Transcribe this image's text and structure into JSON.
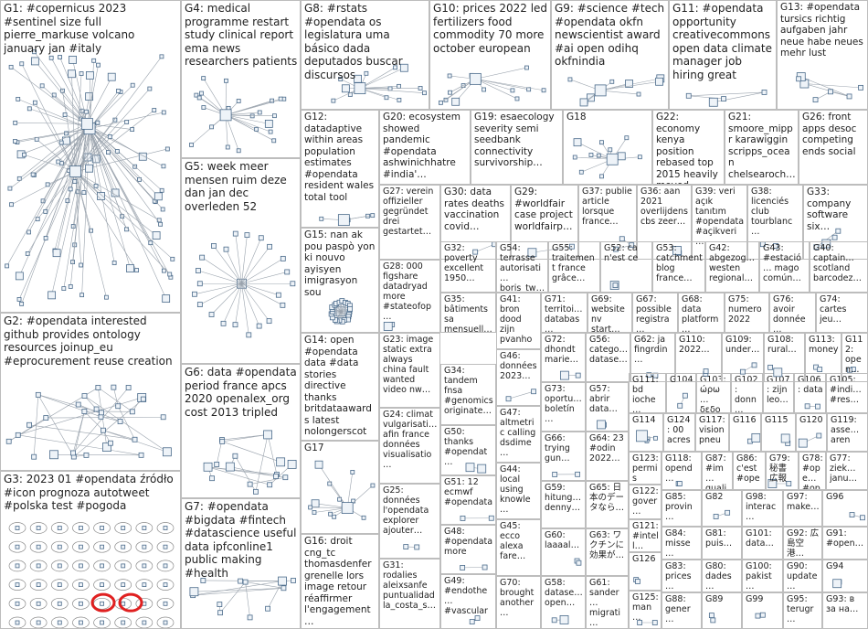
{
  "graph": {
    "groups": [
      {
        "id": "G1",
        "label": "G1: #copernicus 2023 #sentinel size full pierre_markuse volcano january jan #italy"
      },
      {
        "id": "G2",
        "label": "G2: #opendata interested github provides ontology resources joinup_eu #eprocurement reuse creation"
      },
      {
        "id": "G3",
        "label": "G3: 2023 01 #opendata źródło #icon prognoza autotweet #polska test #pogoda"
      },
      {
        "id": "G4",
        "label": "G4: medical programme restart study clinical report ema news researchers patients"
      },
      {
        "id": "G5",
        "label": "G5: week meer mensen ruim deze dan jan dec overleden 52"
      },
      {
        "id": "G6",
        "label": "G6: data #opendata period france apcs 2020 openalex_org cost 2013 tripled"
      },
      {
        "id": "G7",
        "label": "G7: #opendata #bigdata #fintech #datascience useful data ipfconline1 public making #health"
      },
      {
        "id": "G8",
        "label": "G8: #rstats #opendata os legislatura uma básico dada deputados buscar discursos"
      },
      {
        "id": "G9",
        "label": "G9: #science #tech #opendata okfn newscientist award #ai open odihq okfnindia"
      },
      {
        "id": "G10",
        "label": "G10: prices 2022 led fertilizers food commodity 70 more october european"
      },
      {
        "id": "G11",
        "label": "G11: #opendata opportunity creativecommons open data climate manager job hiring great"
      },
      {
        "id": "G12",
        "label": "G12: datadaptive within areas population estimates #opendata resident wales total tool"
      },
      {
        "id": "G13",
        "label": "G13: #opendata tursics richtig aufgaben jahr neue habe neues mehr lust"
      },
      {
        "id": "G14",
        "label": "G14: open #opendata data #data stories directive thanks britdataawards latest nolongerscot"
      },
      {
        "id": "G15",
        "label": "G15: nan ak pou paspò yon ki nouvo ayisyen imigrasyon sou"
      },
      {
        "id": "G16",
        "label": "G16: droit cng_tc thomasdenfer grenelle lors image retour réaffirmer l'engagement…"
      },
      {
        "id": "G17",
        "label": "G17"
      },
      {
        "id": "G18",
        "label": "G18"
      },
      {
        "id": "G19",
        "label": "G19: esaecology severity semi seedbank connectivity survivorship…"
      },
      {
        "id": "G20",
        "label": "G20: ecosystem showed pandemic #opendata ashwinichhatre #india'…"
      },
      {
        "id": "G21",
        "label": "G21: smoore_mippr karawiggin scripps_ocean chelsearoch…"
      },
      {
        "id": "G22",
        "label": "G22: economy kenya position rebased top 2015 heavily moved…"
      },
      {
        "id": "G23",
        "label": "G23: image static extra always china fault wanted video nw…"
      },
      {
        "id": "G24",
        "label": "G24: climat vulgarisati… afin france données visualisatio…"
      },
      {
        "id": "G25",
        "label": "G25: données l'opendata explorer ajouter…"
      },
      {
        "id": "G26",
        "label": "G26: front apps desoc competing ends social"
      },
      {
        "id": "G27",
        "label": "G27: verein offizieller gegründet drei gestartet…"
      },
      {
        "id": "G28",
        "label": "G28: 000 figshare datadryad more #stateofop…"
      },
      {
        "id": "G29",
        "label": "G29: #worldfair case project worldfairp…"
      },
      {
        "id": "G30",
        "label": "G30: data rates deaths vaccination covid…"
      },
      {
        "id": "G31",
        "label": "G31: rodalies aleixsanfe puntualidad la_costa_s…"
      },
      {
        "id": "G32",
        "label": "G32: poverty excellent 1950…"
      },
      {
        "id": "G33",
        "label": "G33: company software six…"
      },
      {
        "id": "G34",
        "label": "G34: tandem fnsa #genomics originate…"
      },
      {
        "id": "G35",
        "label": "G35: bâtiments sa mensuell…"
      },
      {
        "id": "G36",
        "label": "G36: aan 2021 overlijdens cbs zeer…"
      },
      {
        "id": "G37",
        "label": "G37: publie article lorsque france…"
      },
      {
        "id": "G38",
        "label": "G38: licenciés club tourblanc…"
      },
      {
        "id": "G39",
        "label": "G39: veri açık tanıtım #opendata #açikveri…"
      },
      {
        "id": "G40",
        "label": "G40: captain… scotland barcodez…"
      },
      {
        "id": "G41",
        "label": "G41: bron dood zijn pvanho…"
      },
      {
        "id": "G42",
        "label": "G42: abgezog… westen regional…"
      },
      {
        "id": "G43",
        "label": "G43: #estació… mago común…"
      },
      {
        "id": "G44",
        "label": "G44: local using knowle…"
      },
      {
        "id": "G45",
        "label": "G45: ecco alexa fare…"
      },
      {
        "id": "G46",
        "label": "G46: données 2023…"
      },
      {
        "id": "G47",
        "label": "G47: altmetric calling dsdime…"
      },
      {
        "id": "G48",
        "label": "G48: #opendata more"
      },
      {
        "id": "G49",
        "label": "G49: #endothe… #vascular"
      },
      {
        "id": "G50",
        "label": "G50: thanks #opendat…"
      },
      {
        "id": "G51",
        "label": "G51: 12 ecmwf #opendata"
      },
      {
        "id": "G52",
        "label": "G52: ca n'est ce"
      },
      {
        "id": "G53",
        "label": "G53: catchment blog france…"
      },
      {
        "id": "G54",
        "label": "G54: terrasse autorisati… boris_tw…"
      },
      {
        "id": "G55",
        "label": "G55: traitement france grâce…"
      },
      {
        "id": "G56",
        "label": "G56: catego… datase…"
      },
      {
        "id": "G57",
        "label": "G57: abrir data…"
      },
      {
        "id": "G58",
        "label": "G58: datase… open…"
      },
      {
        "id": "G59",
        "label": "G59: hitung… denny…"
      },
      {
        "id": "G60",
        "label": "G60: laaaal…"
      },
      {
        "id": "G61",
        "label": "G61: sander… migrati…"
      },
      {
        "id": "G62",
        "label": "G62: ja fingrdin…"
      },
      {
        "id": "G63",
        "label": "G63: ワクチンに効果が…"
      },
      {
        "id": "G64",
        "label": "G64: 23 #odin 2022…"
      },
      {
        "id": "G65",
        "label": "G65: 日本のデータなら…"
      },
      {
        "id": "G66",
        "label": "G66: trying gun…"
      },
      {
        "id": "G67",
        "label": "G67: possible registra…"
      },
      {
        "id": "G68",
        "label": "G68: data platform…"
      },
      {
        "id": "G69",
        "label": "G69: website nv start…"
      },
      {
        "id": "G70",
        "label": "G70: brought another…"
      },
      {
        "id": "G71",
        "label": "G71: territoi… databas…"
      },
      {
        "id": "G72",
        "label": "G72: dhondt marie…"
      },
      {
        "id": "G73",
        "label": "G73: oportu… boletín…"
      },
      {
        "id": "G74",
        "label": "G74: cartes jeu…"
      },
      {
        "id": "G75",
        "label": "G75: numero 2022"
      },
      {
        "id": "G76",
        "label": "G76: avoir donnée…"
      },
      {
        "id": "G77",
        "label": "G77: ziek… janu…"
      },
      {
        "id": "G78",
        "label": "G78: #ope… #op…"
      },
      {
        "id": "G79",
        "label": "G79: 秘書 広報"
      },
      {
        "id": "G80",
        "label": "G80: dades…"
      },
      {
        "id": "G81",
        "label": "G81: puis…"
      },
      {
        "id": "G82",
        "label": "G82"
      },
      {
        "id": "G83",
        "label": "G83: prices…"
      },
      {
        "id": "G84",
        "label": "G84: misse…"
      },
      {
        "id": "G85",
        "label": "G85: provin…"
      },
      {
        "id": "G86",
        "label": "G86: c'est #ope…"
      },
      {
        "id": "G87",
        "label": "G87: #im… quali…"
      },
      {
        "id": "G88",
        "label": "G88: gener…"
      },
      {
        "id": "G89",
        "label": "G89"
      },
      {
        "id": "G90",
        "label": "G90: update…"
      },
      {
        "id": "G91",
        "label": "G91: #open…"
      },
      {
        "id": "G92",
        "label": "G92: 広島空港…"
      },
      {
        "id": "G93",
        "label": "G93: в за на…"
      },
      {
        "id": "G94",
        "label": "G94"
      },
      {
        "id": "G95",
        "label": "G95: terugr…"
      },
      {
        "id": "G96",
        "label": "G96"
      },
      {
        "id": "G97",
        "label": "G97: make…"
      },
      {
        "id": "G98",
        "label": "G98: interac…"
      },
      {
        "id": "G99",
        "label": "G99"
      },
      {
        "id": "G100",
        "label": "G100: pakist…"
      },
      {
        "id": "G101",
        "label": "G101: data…"
      },
      {
        "id": "G102",
        "label": "G102: donn… d'enq…"
      },
      {
        "id": "G103",
        "label": "G103: ώρω… δεδο…"
      },
      {
        "id": "G104",
        "label": "G104"
      },
      {
        "id": "G105",
        "label": "G105: #indi… #res…"
      },
      {
        "id": "G106",
        "label": "G106: data"
      },
      {
        "id": "G107",
        "label": "G107: zijn leo…"
      },
      {
        "id": "G108",
        "label": "G108: rural…"
      },
      {
        "id": "G109",
        "label": "G109: under…"
      },
      {
        "id": "G110",
        "label": "G110: 2022…"
      },
      {
        "id": "G111",
        "label": "G111: bd ioche…"
      },
      {
        "id": "G112",
        "label": "G112: open…"
      },
      {
        "id": "G113",
        "label": "G113: money"
      },
      {
        "id": "G114",
        "label": "G114"
      },
      {
        "id": "G115",
        "label": "G115"
      },
      {
        "id": "G116",
        "label": "G116"
      },
      {
        "id": "G117",
        "label": "G117: vision pneu…"
      },
      {
        "id": "G118",
        "label": "G118: opend…"
      },
      {
        "id": "G119",
        "label": "G119: asse… aren"
      },
      {
        "id": "G120",
        "label": "G120"
      },
      {
        "id": "G121",
        "label": "G121: #intell…"
      },
      {
        "id": "G122",
        "label": "G122: gover…"
      },
      {
        "id": "G123",
        "label": "G123: permis"
      },
      {
        "id": "G124",
        "label": "G124: 00 acres…"
      },
      {
        "id": "G125",
        "label": "G125: man…"
      },
      {
        "id": "G126",
        "label": "G126"
      }
    ],
    "colors": {
      "edge": "#9aa3ad",
      "node_fill": "#eef3f8",
      "node_stroke": "#4a6a8a",
      "border": "#bdbdbd",
      "highlight": "#e02020"
    }
  }
}
